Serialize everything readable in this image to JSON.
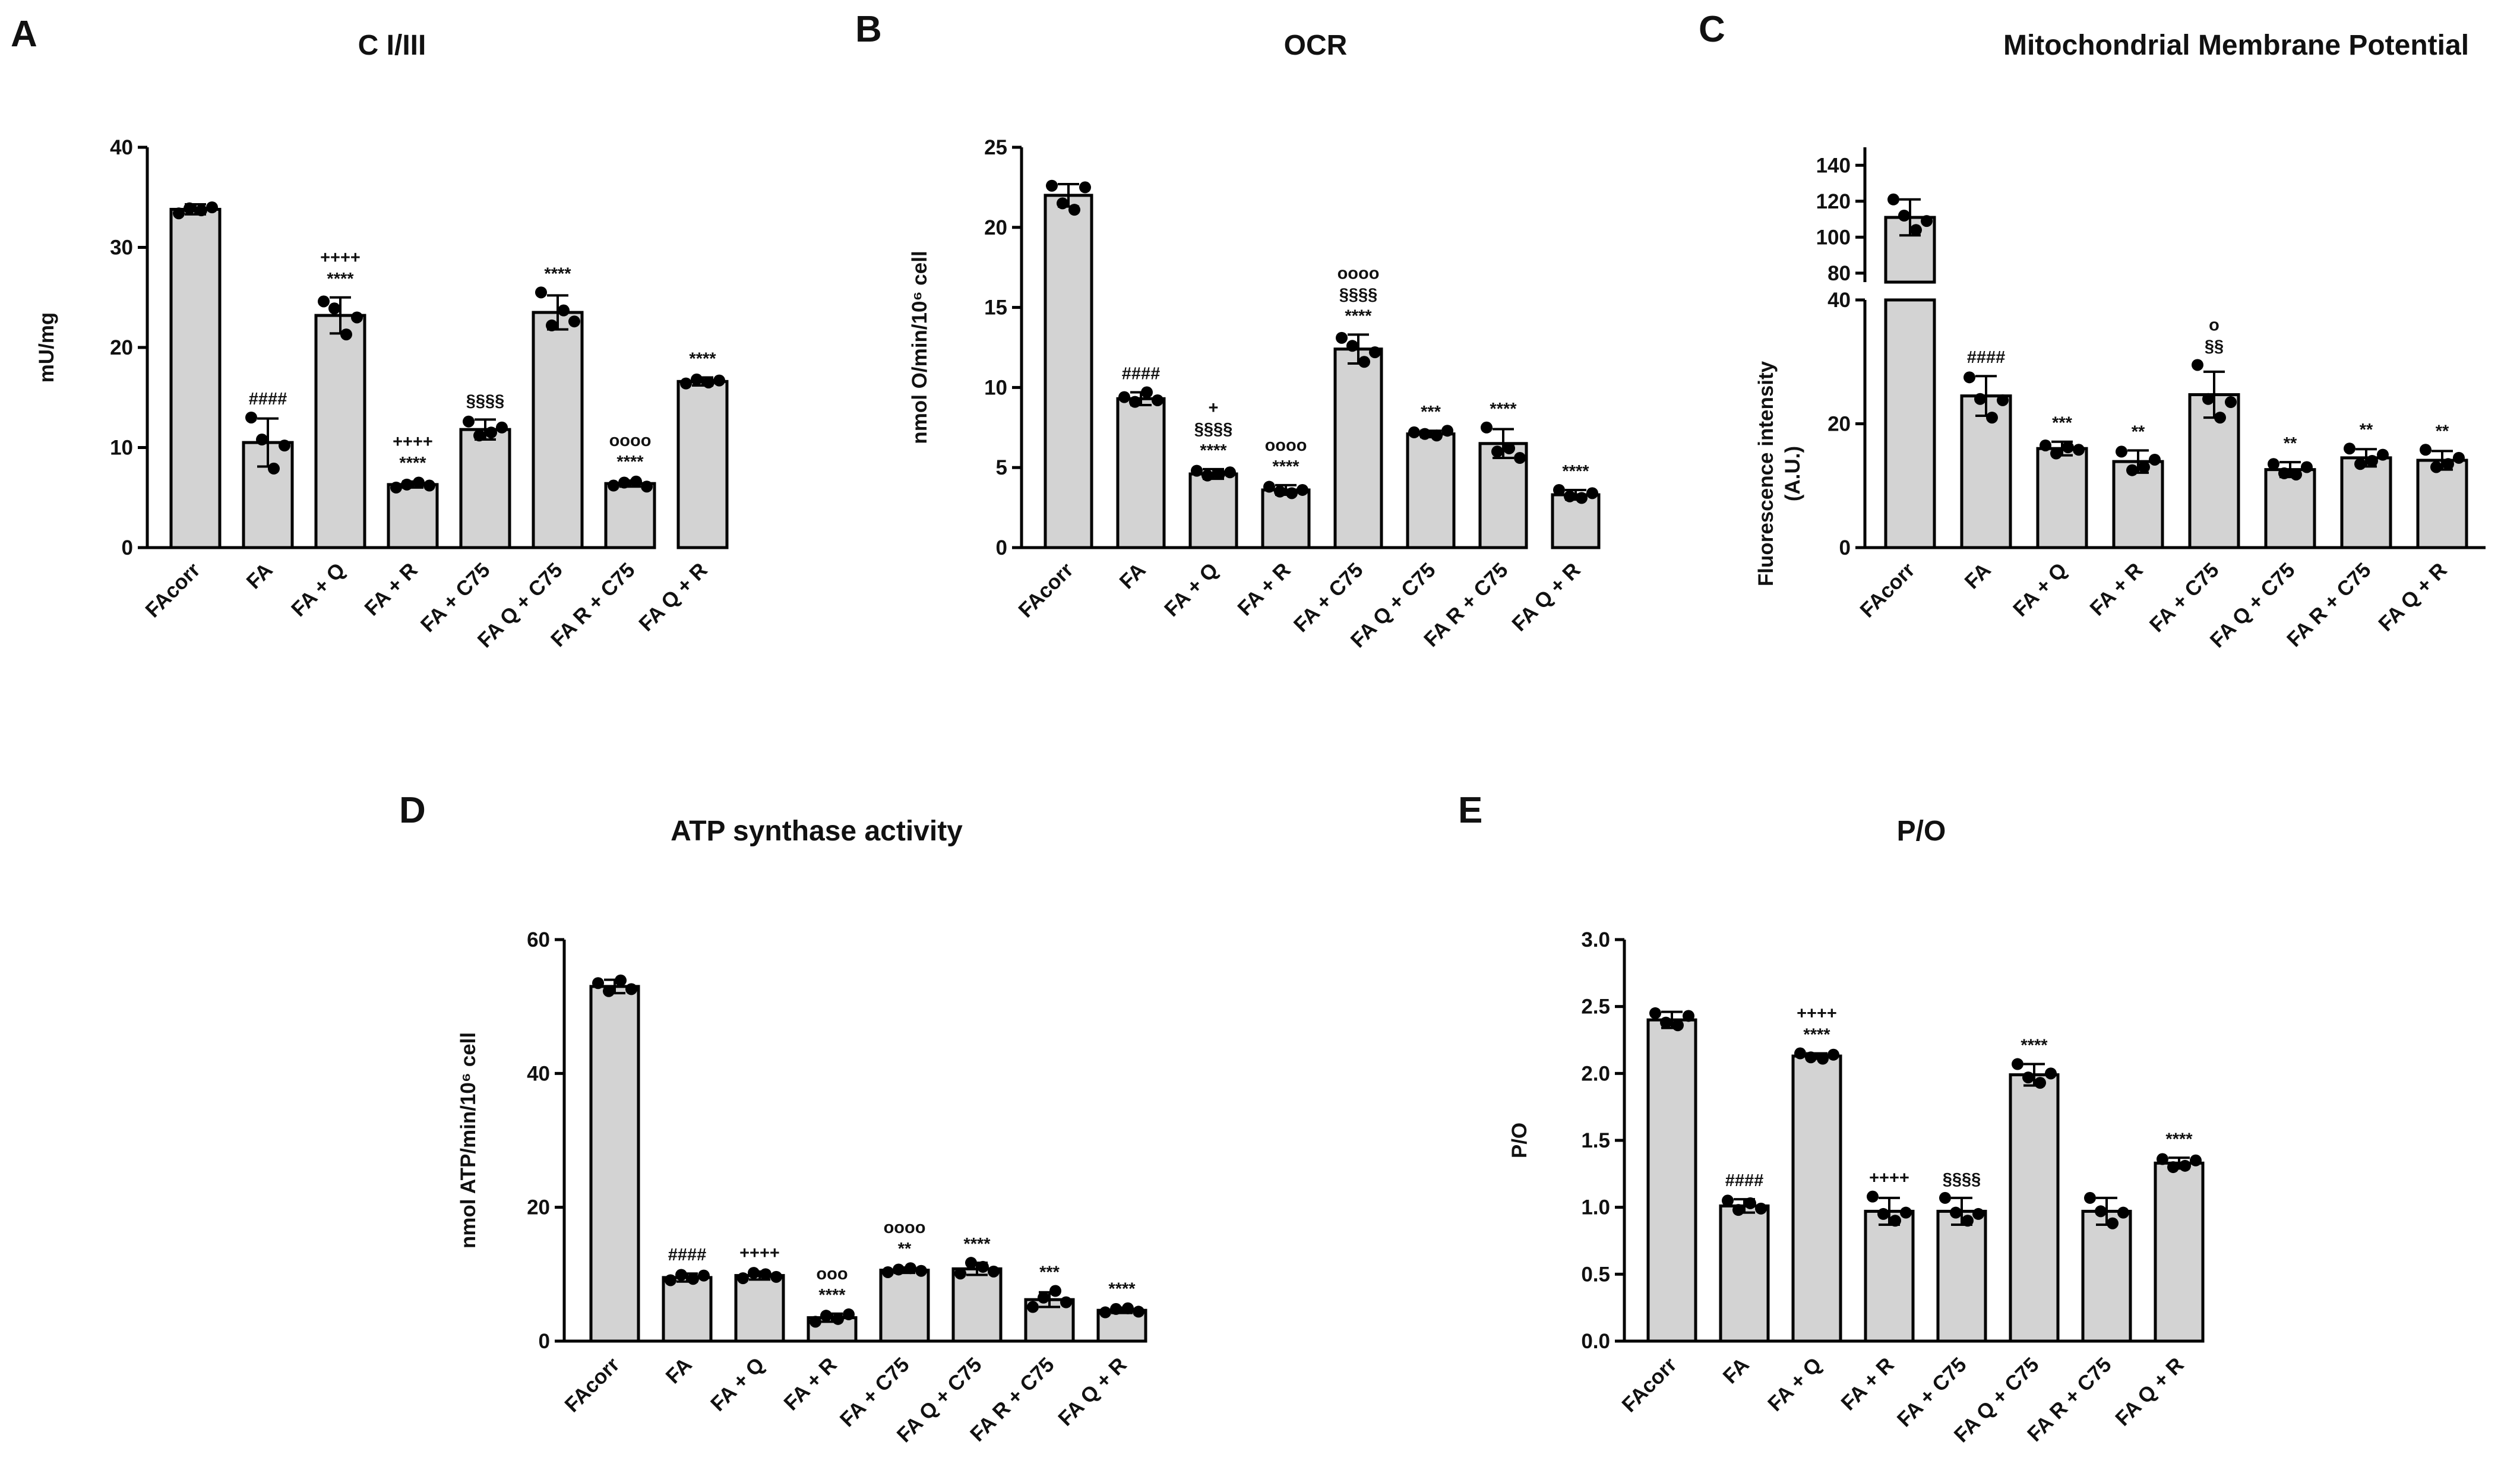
{
  "figure": {
    "bar_color": "#d3d3d3",
    "point_color": "#000000",
    "edge_color": "#000000"
  },
  "chart_data": [
    {
      "panel": "A",
      "type": "bar",
      "title": "C I/III",
      "xlabel": "",
      "ylabel": "mU/mg",
      "ylim": [
        0,
        40
      ],
      "yticks": [
        "0",
        "10",
        "20",
        "30",
        "40"
      ],
      "ytick_values": [
        0,
        10,
        20,
        30,
        40
      ],
      "categories": [
        "FAcorr",
        "FA",
        "FA + Q",
        "FA + R",
        "FA + C75",
        "FA Q + C75",
        "FA R + C75",
        "FA Q + R"
      ],
      "values": [
        33.8,
        10.5,
        23.2,
        6.3,
        11.8,
        23.5,
        6.4,
        16.6
      ],
      "errors": [
        0.5,
        2.4,
        1.8,
        0.3,
        1.0,
        1.7,
        0.3,
        0.4
      ],
      "points": [
        [
          33.4,
          33.9,
          33.7,
          34.0
        ],
        [
          13.0,
          10.8,
          7.9,
          10.2
        ],
        [
          24.6,
          23.9,
          21.3,
          23.0
        ],
        [
          6.0,
          6.3,
          6.5,
          6.2
        ],
        [
          12.6,
          11.2,
          11.5,
          12.0
        ],
        [
          25.5,
          22.2,
          23.7,
          22.6
        ],
        [
          6.2,
          6.5,
          6.6,
          6.1
        ],
        [
          16.4,
          16.8,
          16.5,
          16.7
        ]
      ],
      "annotations": [
        [],
        [
          "####"
        ],
        [
          "++++",
          "****"
        ],
        [
          "++++",
          "****"
        ],
        [
          "§§§§"
        ],
        [
          "****"
        ],
        [
          "oooo",
          "****"
        ],
        [
          "****"
        ]
      ]
    },
    {
      "panel": "B",
      "type": "bar",
      "title": "OCR",
      "xlabel": "",
      "ylabel": "nmol O/min/10⁶ cell",
      "ylim": [
        0,
        25
      ],
      "yticks": [
        "0",
        "5",
        "10",
        "15",
        "20",
        "25"
      ],
      "ytick_values": [
        0,
        5,
        10,
        15,
        20,
        25
      ],
      "categories": [
        "FAcorr",
        "FA",
        "FA + Q",
        "FA + R",
        "FA + C75",
        "FA Q + C75",
        "FA R + C75",
        "FA Q + R"
      ],
      "values": [
        22.0,
        9.3,
        4.6,
        3.6,
        12.4,
        7.1,
        6.5,
        3.3
      ],
      "errors": [
        0.7,
        0.4,
        0.3,
        0.3,
        0.9,
        0.2,
        0.9,
        0.3
      ],
      "points": [
        [
          22.6,
          21.5,
          21.1,
          22.5
        ],
        [
          9.4,
          9.1,
          9.7,
          9.2
        ],
        [
          4.8,
          4.5,
          4.6,
          4.7
        ],
        [
          3.8,
          3.5,
          3.4,
          3.6
        ],
        [
          13.1,
          12.6,
          11.6,
          12.2
        ],
        [
          7.2,
          7.1,
          7.0,
          7.3
        ],
        [
          7.5,
          6.0,
          6.2,
          5.6
        ],
        [
          3.6,
          3.2,
          3.1,
          3.4
        ]
      ],
      "annotations": [
        [],
        [
          "####"
        ],
        [
          "+",
          "§§§§",
          "****"
        ],
        [
          "oooo",
          "****"
        ],
        [
          "oooo",
          "§§§§",
          "****"
        ],
        [
          "***"
        ],
        [
          "****"
        ],
        [
          "****"
        ]
      ]
    },
    {
      "panel": "C",
      "type": "bar",
      "title": "Mitochondrial Membrane Potential",
      "xlabel": "",
      "ylabel": "Fluorescence intensity (A.U.)",
      "ylabel_lines": [
        "Fluorescence intensity",
        "(A.U.)"
      ],
      "y_axis_break": true,
      "lower_segment": {
        "ylim": [
          0,
          40
        ],
        "yticks": [
          "0",
          "20",
          "40"
        ],
        "ytick_values": [
          0,
          20,
          40
        ]
      },
      "upper_segment": {
        "ylim": [
          75,
          150
        ],
        "yticks": [
          "80",
          "100",
          "120",
          "140"
        ],
        "ytick_values": [
          80,
          100,
          120,
          140
        ]
      },
      "categories": [
        "FAcorr",
        "FA",
        "FA + Q",
        "FA + R",
        "FA + C75",
        "FA Q + C75",
        "FA R + C75",
        "FA Q + R"
      ],
      "values": [
        111,
        24.5,
        16.0,
        13.9,
        24.7,
        12.6,
        14.5,
        14.1
      ],
      "errors": [
        10,
        3.2,
        1.1,
        1.8,
        3.7,
        1.2,
        1.4,
        1.5
      ],
      "points": [
        [
          121,
          112,
          104,
          109
        ],
        [
          27.5,
          24.0,
          21.0,
          23.8
        ],
        [
          16.5,
          15.2,
          16.2,
          15.8
        ],
        [
          15.5,
          12.5,
          13.0,
          14.2
        ],
        [
          29.5,
          24.0,
          21.0,
          23.5
        ],
        [
          13.5,
          12.0,
          11.8,
          13.0
        ],
        [
          16.0,
          13.5,
          14.0,
          15.0
        ],
        [
          15.8,
          13.0,
          13.5,
          14.5
        ]
      ],
      "annotations": [
        [],
        [
          "####"
        ],
        [
          "***"
        ],
        [
          "**"
        ],
        [
          "o",
          "§§"
        ],
        [
          "**"
        ],
        [
          "**"
        ],
        [
          "**"
        ]
      ]
    },
    {
      "panel": "D",
      "type": "bar",
      "title": "ATP synthase activity",
      "xlabel": "",
      "ylabel": "nmol ATP/min/10⁶ cell",
      "ylim": [
        0,
        60
      ],
      "yticks": [
        "0",
        "20",
        "40",
        "60"
      ],
      "ytick_values": [
        0,
        20,
        40,
        60
      ],
      "categories": [
        "FAcorr",
        "FA",
        "FA + Q",
        "FA + R",
        "FA + C75",
        "FA Q + C75",
        "FA R + C75",
        "FA Q + R"
      ],
      "values": [
        53.0,
        9.5,
        9.8,
        3.5,
        10.6,
        10.8,
        6.2,
        4.6
      ],
      "errors": [
        1.0,
        0.6,
        0.6,
        0.6,
        0.4,
        0.9,
        1.1,
        0.4
      ],
      "points": [
        [
          53.5,
          52.3,
          53.9,
          52.6
        ],
        [
          9.1,
          9.9,
          9.3,
          9.8
        ],
        [
          9.4,
          10.2,
          10.0,
          9.6
        ],
        [
          2.9,
          3.8,
          3.3,
          4.0
        ],
        [
          10.3,
          10.7,
          10.9,
          10.5
        ],
        [
          10.1,
          11.7,
          11.1,
          10.4
        ],
        [
          5.1,
          6.5,
          7.5,
          5.8
        ],
        [
          4.3,
          4.8,
          4.9,
          4.4
        ]
      ],
      "annotations": [
        [],
        [
          "####"
        ],
        [
          "++++"
        ],
        [
          "ooo",
          "****"
        ],
        [
          "oooo",
          "**"
        ],
        [
          "****"
        ],
        [
          "***"
        ],
        [
          "****"
        ]
      ]
    },
    {
      "panel": "E",
      "type": "bar",
      "title": "P/O",
      "xlabel": "",
      "ylabel": "P/O",
      "ylim": [
        0,
        3.0
      ],
      "yticks": [
        "0.0",
        "0.5",
        "1.0",
        "1.5",
        "2.0",
        "2.5",
        "3.0"
      ],
      "ytick_values": [
        0,
        0.5,
        1.0,
        1.5,
        2.0,
        2.5,
        3.0
      ],
      "categories": [
        "FAcorr",
        "FA",
        "FA + Q",
        "FA + R",
        "FA + C75",
        "FA Q + C75",
        "FA R + C75",
        "FA Q + R"
      ],
      "values": [
        2.4,
        1.01,
        2.13,
        0.97,
        0.97,
        1.99,
        0.97,
        1.33
      ],
      "errors": [
        0.06,
        0.05,
        0.02,
        0.1,
        0.1,
        0.08,
        0.1,
        0.04
      ],
      "points": [
        [
          2.45,
          2.38,
          2.36,
          2.43
        ],
        [
          1.05,
          0.98,
          1.03,
          0.99
        ],
        [
          2.15,
          2.12,
          2.11,
          2.14
        ],
        [
          1.08,
          0.95,
          0.9,
          0.96
        ],
        [
          1.07,
          0.96,
          0.9,
          0.95
        ],
        [
          2.07,
          1.97,
          1.93,
          2.0
        ],
        [
          1.07,
          0.97,
          0.88,
          0.96
        ],
        [
          1.36,
          1.3,
          1.31,
          1.35
        ]
      ],
      "annotations": [
        [],
        [
          "####"
        ],
        [
          "++++",
          "****"
        ],
        [
          "++++"
        ],
        [
          "§§§§"
        ],
        [
          "****"
        ],
        [],
        [
          "****"
        ]
      ]
    }
  ]
}
